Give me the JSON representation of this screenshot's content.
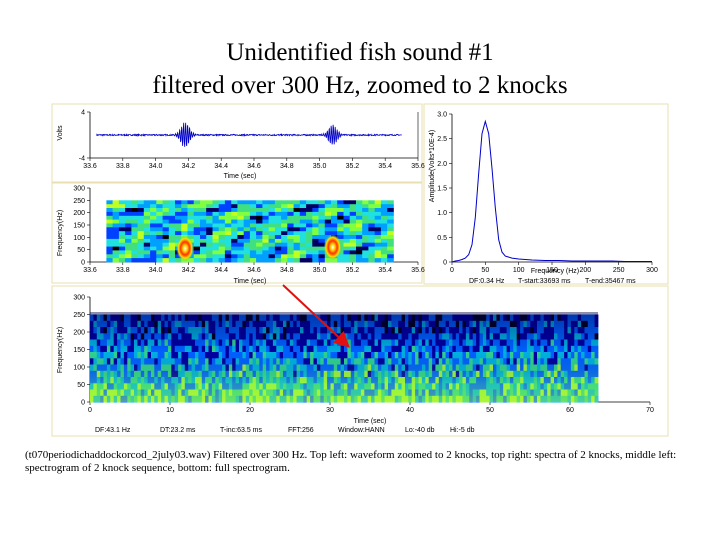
{
  "slide": {
    "title_line1": "Unidentified fish sound #1",
    "title_line2": "filtered over 300 Hz, zoomed to 2 knocks",
    "caption": "(t070periodichaddockorcod_2july03.wav) Filtered over 300 Hz. Top left: waveform zoomed to 2 knocks, top right: spectra of 2 knocks, middle left: spectrogram of 2 knock sequence, bottom: full spectrogram."
  },
  "colors": {
    "trace": "#0000c8",
    "arrow": "#e01010",
    "panel_border": "#e8e0b0"
  },
  "chart_data": [
    {
      "type": "line",
      "ylabel": "Volts",
      "xlabel": "Time (sec)",
      "xlim": [
        33.6,
        35.6
      ],
      "ylim": [
        -4,
        4
      ],
      "x_ticks": [
        "33.6",
        "33.8",
        "34.0",
        "34.2",
        "34.4",
        "34.6",
        "34.8",
        "35.0",
        "35.2",
        "35.4",
        "35.6"
      ],
      "y_ticks": [
        "4",
        "-4"
      ],
      "bursts": [
        {
          "center": 34.18,
          "amplitude": 2.2
        },
        {
          "center": 35.08,
          "amplitude": 1.8
        }
      ]
    },
    {
      "type": "heatmap",
      "ylabel": "Frequency(Hz)",
      "xlabel": "Time (sec)",
      "xlim": [
        33.6,
        35.6
      ],
      "ylim": [
        0,
        300
      ],
      "x_ticks": [
        "33.6",
        "33.8",
        "34.0",
        "34.2",
        "34.4",
        "34.6",
        "34.8",
        "35.0",
        "35.2",
        "35.4",
        "35.6"
      ],
      "y_ticks": [
        "300",
        "250",
        "200",
        "150",
        "100",
        "50",
        "0"
      ],
      "data_xlim": [
        33.7,
        35.45
      ],
      "data_ylim": [
        0,
        250
      ],
      "hotspots": [
        {
          "time": 34.18,
          "freq": 55
        },
        {
          "time": 35.08,
          "freq": 60
        }
      ]
    },
    {
      "type": "line",
      "ylabel": "Amplitude(Volts*10E-4)",
      "xlabel": "Frequency (Hz)",
      "xlim": [
        0,
        300
      ],
      "ylim": [
        0,
        3.0
      ],
      "x_ticks": [
        "0",
        "50",
        "100",
        "150",
        "200",
        "250",
        "300"
      ],
      "y_ticks": [
        "3.0",
        "2.5",
        "2.0",
        "1.5",
        "1.0",
        "0.5",
        "0"
      ],
      "x": [
        0,
        5,
        10,
        15,
        20,
        25,
        30,
        35,
        40,
        45,
        50,
        55,
        60,
        65,
        70,
        75,
        80,
        90,
        100,
        110,
        120,
        140,
        160,
        180,
        200,
        220,
        240,
        260,
        280,
        300
      ],
      "y": [
        0.0,
        0.02,
        0.03,
        0.05,
        0.08,
        0.15,
        0.35,
        0.9,
        1.8,
        2.6,
        2.85,
        2.6,
        1.9,
        1.1,
        0.45,
        0.2,
        0.12,
        0.08,
        0.06,
        0.05,
        0.04,
        0.03,
        0.03,
        0.02,
        0.02,
        0.02,
        0.02,
        0.01,
        0.01,
        0.01
      ],
      "footer": [
        "DF:0.34 Hz",
        "T-start:33693 ms",
        "T-end:35467 ms"
      ]
    },
    {
      "type": "heatmap",
      "ylabel": "Frequency(Hz)",
      "xlabel": "Time (sec)",
      "xlim": [
        0,
        70
      ],
      "ylim": [
        0,
        300
      ],
      "x_ticks": [
        "0",
        "10",
        "20",
        "30",
        "40",
        "50",
        "60",
        "70"
      ],
      "y_ticks": [
        "300",
        "250",
        "200",
        "150",
        "100",
        "50",
        "0"
      ],
      "data_xlim": [
        0,
        63.5
      ],
      "data_ylim": [
        0,
        250
      ],
      "footer": [
        "DF:43.1 Hz",
        "DT:23.2 ms",
        "T-inc:63.5 ms",
        "FFT:256",
        "Window:HANN",
        "Lo:-40 db",
        "Hi:-5 db"
      ]
    }
  ]
}
